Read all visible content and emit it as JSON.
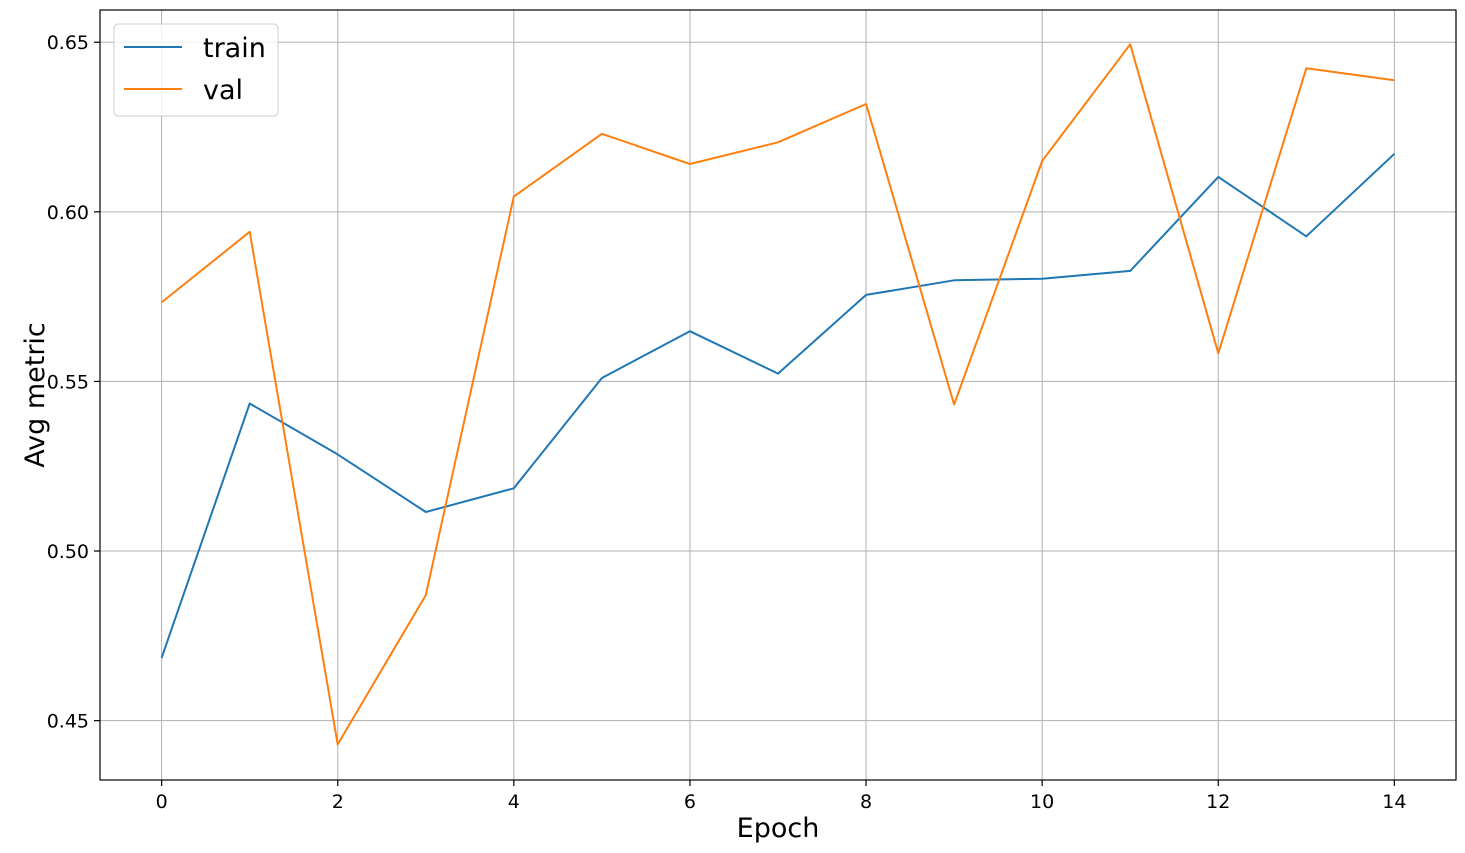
{
  "chart_data": {
    "type": "line",
    "title": "",
    "xlabel": "Epoch",
    "ylabel": "Avg metric",
    "xlim": [
      -0.7,
      14.7
    ],
    "ylim": [
      0.4325,
      0.6595
    ],
    "xticks": [
      0,
      2,
      4,
      6,
      8,
      10,
      12,
      14
    ],
    "yticks": [
      0.45,
      0.5,
      0.55,
      0.6,
      0.65
    ],
    "xtick_labels": [
      "0",
      "2",
      "4",
      "6",
      "8",
      "10",
      "12",
      "14"
    ],
    "ytick_labels": [
      "0.45",
      "0.50",
      "0.55",
      "0.60",
      "0.65"
    ],
    "grid": true,
    "legend_position": "top-left",
    "x": [
      0,
      1,
      2,
      3,
      4,
      5,
      6,
      7,
      8,
      9,
      10,
      11,
      12,
      13,
      14
    ],
    "series": [
      {
        "name": "train",
        "color": "#1f77b4",
        "values": [
          0.4685,
          0.5435,
          0.5285,
          0.5115,
          0.5185,
          0.551,
          0.5648,
          0.5523,
          0.5755,
          0.5798,
          0.5803,
          0.5826,
          0.6103,
          0.5928,
          0.6171
        ]
      },
      {
        "name": "val",
        "color": "#ff7f0e",
        "values": [
          0.5733,
          0.5941,
          0.443,
          0.487,
          0.6045,
          0.623,
          0.6141,
          0.6205,
          0.6318,
          0.5432,
          0.615,
          0.6494,
          0.5583,
          0.6423,
          0.6388
        ]
      }
    ]
  }
}
